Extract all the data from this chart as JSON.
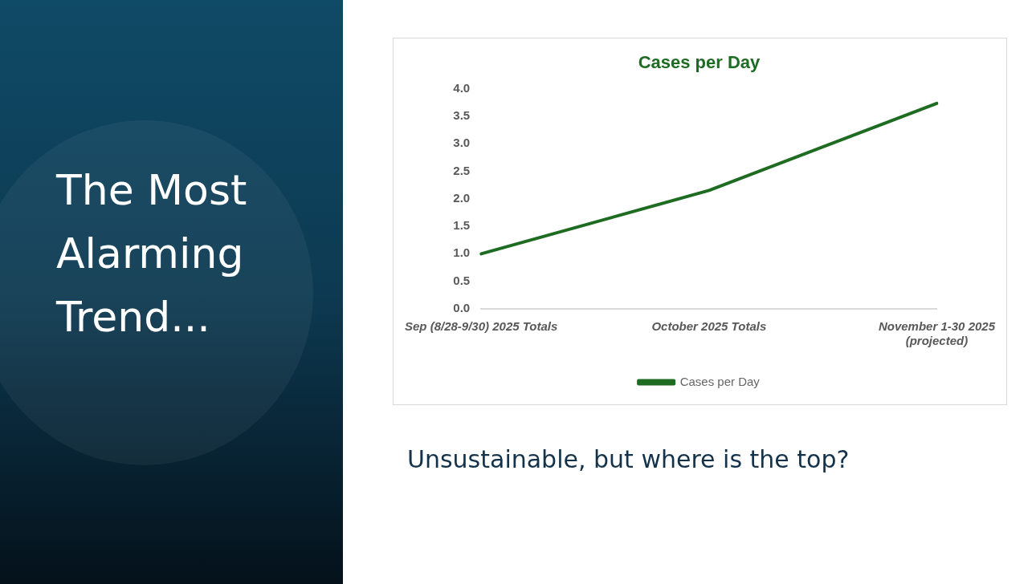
{
  "chart_data": {
    "type": "line",
    "title": "Cases per Day",
    "categories": [
      "Sep (8/28-9/30) 2025 Totals",
      "October 2025 Totals",
      "November 1-30 2025 (projected)"
    ],
    "series": [
      {
        "name": "Cases per Day",
        "color": "#1e6b22",
        "values": [
          1.0,
          2.15,
          3.73
        ]
      }
    ],
    "ylim": [
      0,
      4
    ],
    "yticks": [
      {
        "value": 0,
        "label": "0.0"
      },
      0.5,
      {
        "value": 1,
        "label": "1.0"
      },
      1.5,
      {
        "value": 2,
        "label": "2.0"
      },
      2.5,
      {
        "value": 3,
        "label": "3.0"
      },
      3.5,
      {
        "value": 4,
        "label": "4.0"
      }
    ],
    "grid": false,
    "legend": "bottom",
    "marker": "none",
    "line_style": "solid",
    "annotations": [
      "The Most Alarming Trend...",
      "Unsustainable, but where is the top?"
    ]
  }
}
